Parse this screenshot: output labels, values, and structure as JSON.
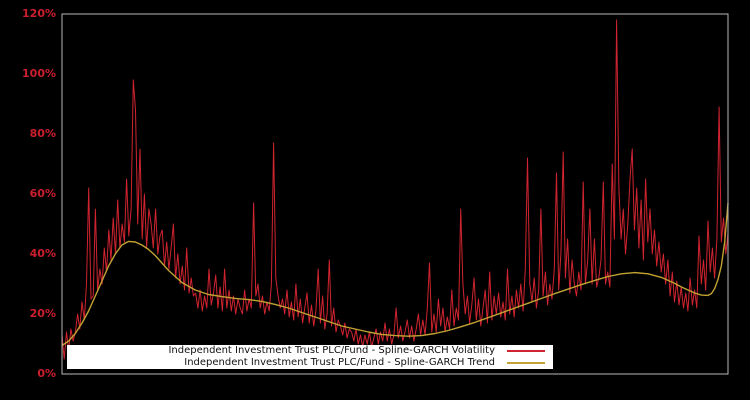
{
  "page": {
    "background": "#000000",
    "frame_color": "#b9b9b9"
  },
  "y_axis": {
    "color": "#cc1f2d",
    "ticks": [
      "120%",
      "100%",
      "80%",
      "60%",
      "40%",
      "20%",
      "0%"
    ]
  },
  "legend": {
    "items": [
      {
        "label": "Independent Investment Trust PLC/Fund - Spline-GARCH Volatility",
        "color": "#d02430"
      },
      {
        "label": "Independent Investment Trust PLC/Fund - Spline-GARCH Trend",
        "color": "#c2a233"
      }
    ]
  },
  "chart_data": {
    "type": "line",
    "title": "",
    "xlabel": "",
    "ylabel": "",
    "ylim": [
      0,
      120
    ],
    "y_tick_step": 20,
    "y_tick_format": "percent",
    "grid": false,
    "background": "black",
    "legend_position": "bottom-inside",
    "x_axis_labels_visible": false,
    "series": [
      {
        "id": "volatility",
        "name": "Independent Investment Trust PLC/Fund - Spline-GARCH Volatility",
        "color": "#d02430",
        "width": 1,
        "x_mode": "uniform",
        "unit": "percent",
        "values": [
          13,
          5,
          14,
          8,
          15,
          11,
          14,
          20,
          15,
          24,
          18,
          30,
          62,
          25,
          26,
          55,
          28,
          35,
          30,
          42,
          34,
          48,
          38,
          52,
          40,
          58,
          42,
          50,
          44,
          65,
          46,
          55,
          98,
          88,
          50,
          75,
          45,
          60,
          42,
          55,
          50,
          42,
          55,
          40,
          46,
          48,
          36,
          44,
          35,
          42,
          50,
          32,
          40,
          30,
          36,
          28,
          42,
          27,
          32,
          26,
          27,
          22,
          28,
          21,
          26,
          22,
          35,
          23,
          27,
          33,
          22,
          29,
          21,
          35,
          22,
          28,
          21,
          26,
          20,
          25,
          22,
          20,
          28,
          21,
          25,
          22,
          57,
          26,
          30,
          22,
          26,
          20,
          24,
          21,
          30,
          77,
          32,
          26,
          22,
          25,
          20,
          28,
          19,
          24,
          18,
          30,
          19,
          25,
          17,
          22,
          27,
          17,
          23,
          16,
          21,
          35,
          17,
          26,
          15,
          20,
          38,
          16,
          22,
          14,
          18,
          16,
          13,
          17,
          12,
          15,
          14,
          11,
          15,
          10,
          13,
          9,
          13,
          10,
          14,
          9,
          12,
          15,
          10,
          14,
          11,
          17,
          11,
          15,
          10,
          13,
          22,
          12,
          16,
          11,
          14,
          18,
          12,
          16,
          11,
          15,
          20,
          13,
          18,
          13,
          22,
          37,
          14,
          20,
          14,
          25,
          16,
          22,
          14,
          19,
          15,
          28,
          16,
          22,
          18,
          55,
          30,
          20,
          26,
          17,
          23,
          32,
          18,
          25,
          16,
          22,
          28,
          17,
          34,
          18,
          26,
          20,
          27,
          19,
          24,
          18,
          35,
          20,
          26,
          19,
          28,
          22,
          30,
          21,
          35,
          72,
          30,
          24,
          32,
          22,
          28,
          55,
          26,
          34,
          23,
          30,
          25,
          35,
          67,
          28,
          40,
          74,
          32,
          45,
          27,
          38,
          30,
          26,
          34,
          28,
          64,
          30,
          38,
          55,
          30,
          45,
          29,
          32,
          38,
          64,
          30,
          34,
          29,
          70,
          45,
          118,
          62,
          45,
          55,
          40,
          50,
          65,
          75,
          48,
          62,
          42,
          58,
          38,
          65,
          44,
          55,
          40,
          48,
          36,
          44,
          34,
          40,
          30,
          38,
          26,
          34,
          24,
          31,
          23,
          29,
          22,
          27,
          21,
          32,
          23,
          28,
          22,
          46,
          30,
          38,
          28,
          51,
          34,
          42,
          32,
          45,
          89,
          44,
          52,
          40,
          47
        ]
      },
      {
        "id": "trend",
        "name": "Independent Investment Trust PLC/Fund - Spline-GARCH Trend",
        "color": "#c2a233",
        "width": 1.4,
        "x_mode": "fraction",
        "unit": "percent",
        "points": [
          [
            0,
            9.5
          ],
          [
            0.01,
            11
          ],
          [
            0.02,
            13.5
          ],
          [
            0.03,
            17
          ],
          [
            0.04,
            21
          ],
          [
            0.05,
            26
          ],
          [
            0.06,
            31
          ],
          [
            0.07,
            36
          ],
          [
            0.08,
            40
          ],
          [
            0.09,
            43
          ],
          [
            0.1,
            44.2
          ],
          [
            0.11,
            44
          ],
          [
            0.12,
            43
          ],
          [
            0.13,
            41.5
          ],
          [
            0.14,
            39.5
          ],
          [
            0.16,
            34.5
          ],
          [
            0.18,
            30.5
          ],
          [
            0.2,
            28
          ],
          [
            0.22,
            26.5
          ],
          [
            0.24,
            25.8
          ],
          [
            0.26,
            25.2
          ],
          [
            0.28,
            24.8
          ],
          [
            0.3,
            24.2
          ],
          [
            0.32,
            23.2
          ],
          [
            0.34,
            22
          ],
          [
            0.36,
            20.5
          ],
          [
            0.38,
            19
          ],
          [
            0.4,
            17.5
          ],
          [
            0.42,
            16
          ],
          [
            0.44,
            15
          ],
          [
            0.46,
            14
          ],
          [
            0.48,
            13.2
          ],
          [
            0.5,
            12.8
          ],
          [
            0.52,
            12.6
          ],
          [
            0.54,
            12.8
          ],
          [
            0.56,
            13.5
          ],
          [
            0.58,
            14.5
          ],
          [
            0.6,
            15.8
          ],
          [
            0.62,
            17.2
          ],
          [
            0.64,
            18.8
          ],
          [
            0.66,
            20.4
          ],
          [
            0.68,
            22
          ],
          [
            0.7,
            23.6
          ],
          [
            0.72,
            25.2
          ],
          [
            0.74,
            26.8
          ],
          [
            0.76,
            28.3
          ],
          [
            0.78,
            29.8
          ],
          [
            0.8,
            31.2
          ],
          [
            0.82,
            32.5
          ],
          [
            0.84,
            33.4
          ],
          [
            0.86,
            33.8
          ],
          [
            0.88,
            33.4
          ],
          [
            0.9,
            32.2
          ],
          [
            0.92,
            30.2
          ],
          [
            0.93,
            29
          ],
          [
            0.94,
            28
          ],
          [
            0.95,
            27
          ],
          [
            0.96,
            26.3
          ],
          [
            0.97,
            26.2
          ],
          [
            0.975,
            26.8
          ],
          [
            0.98,
            28.5
          ],
          [
            0.985,
            31.5
          ],
          [
            0.99,
            36
          ],
          [
            0.995,
            44
          ],
          [
            1,
            57
          ]
        ]
      }
    ]
  }
}
